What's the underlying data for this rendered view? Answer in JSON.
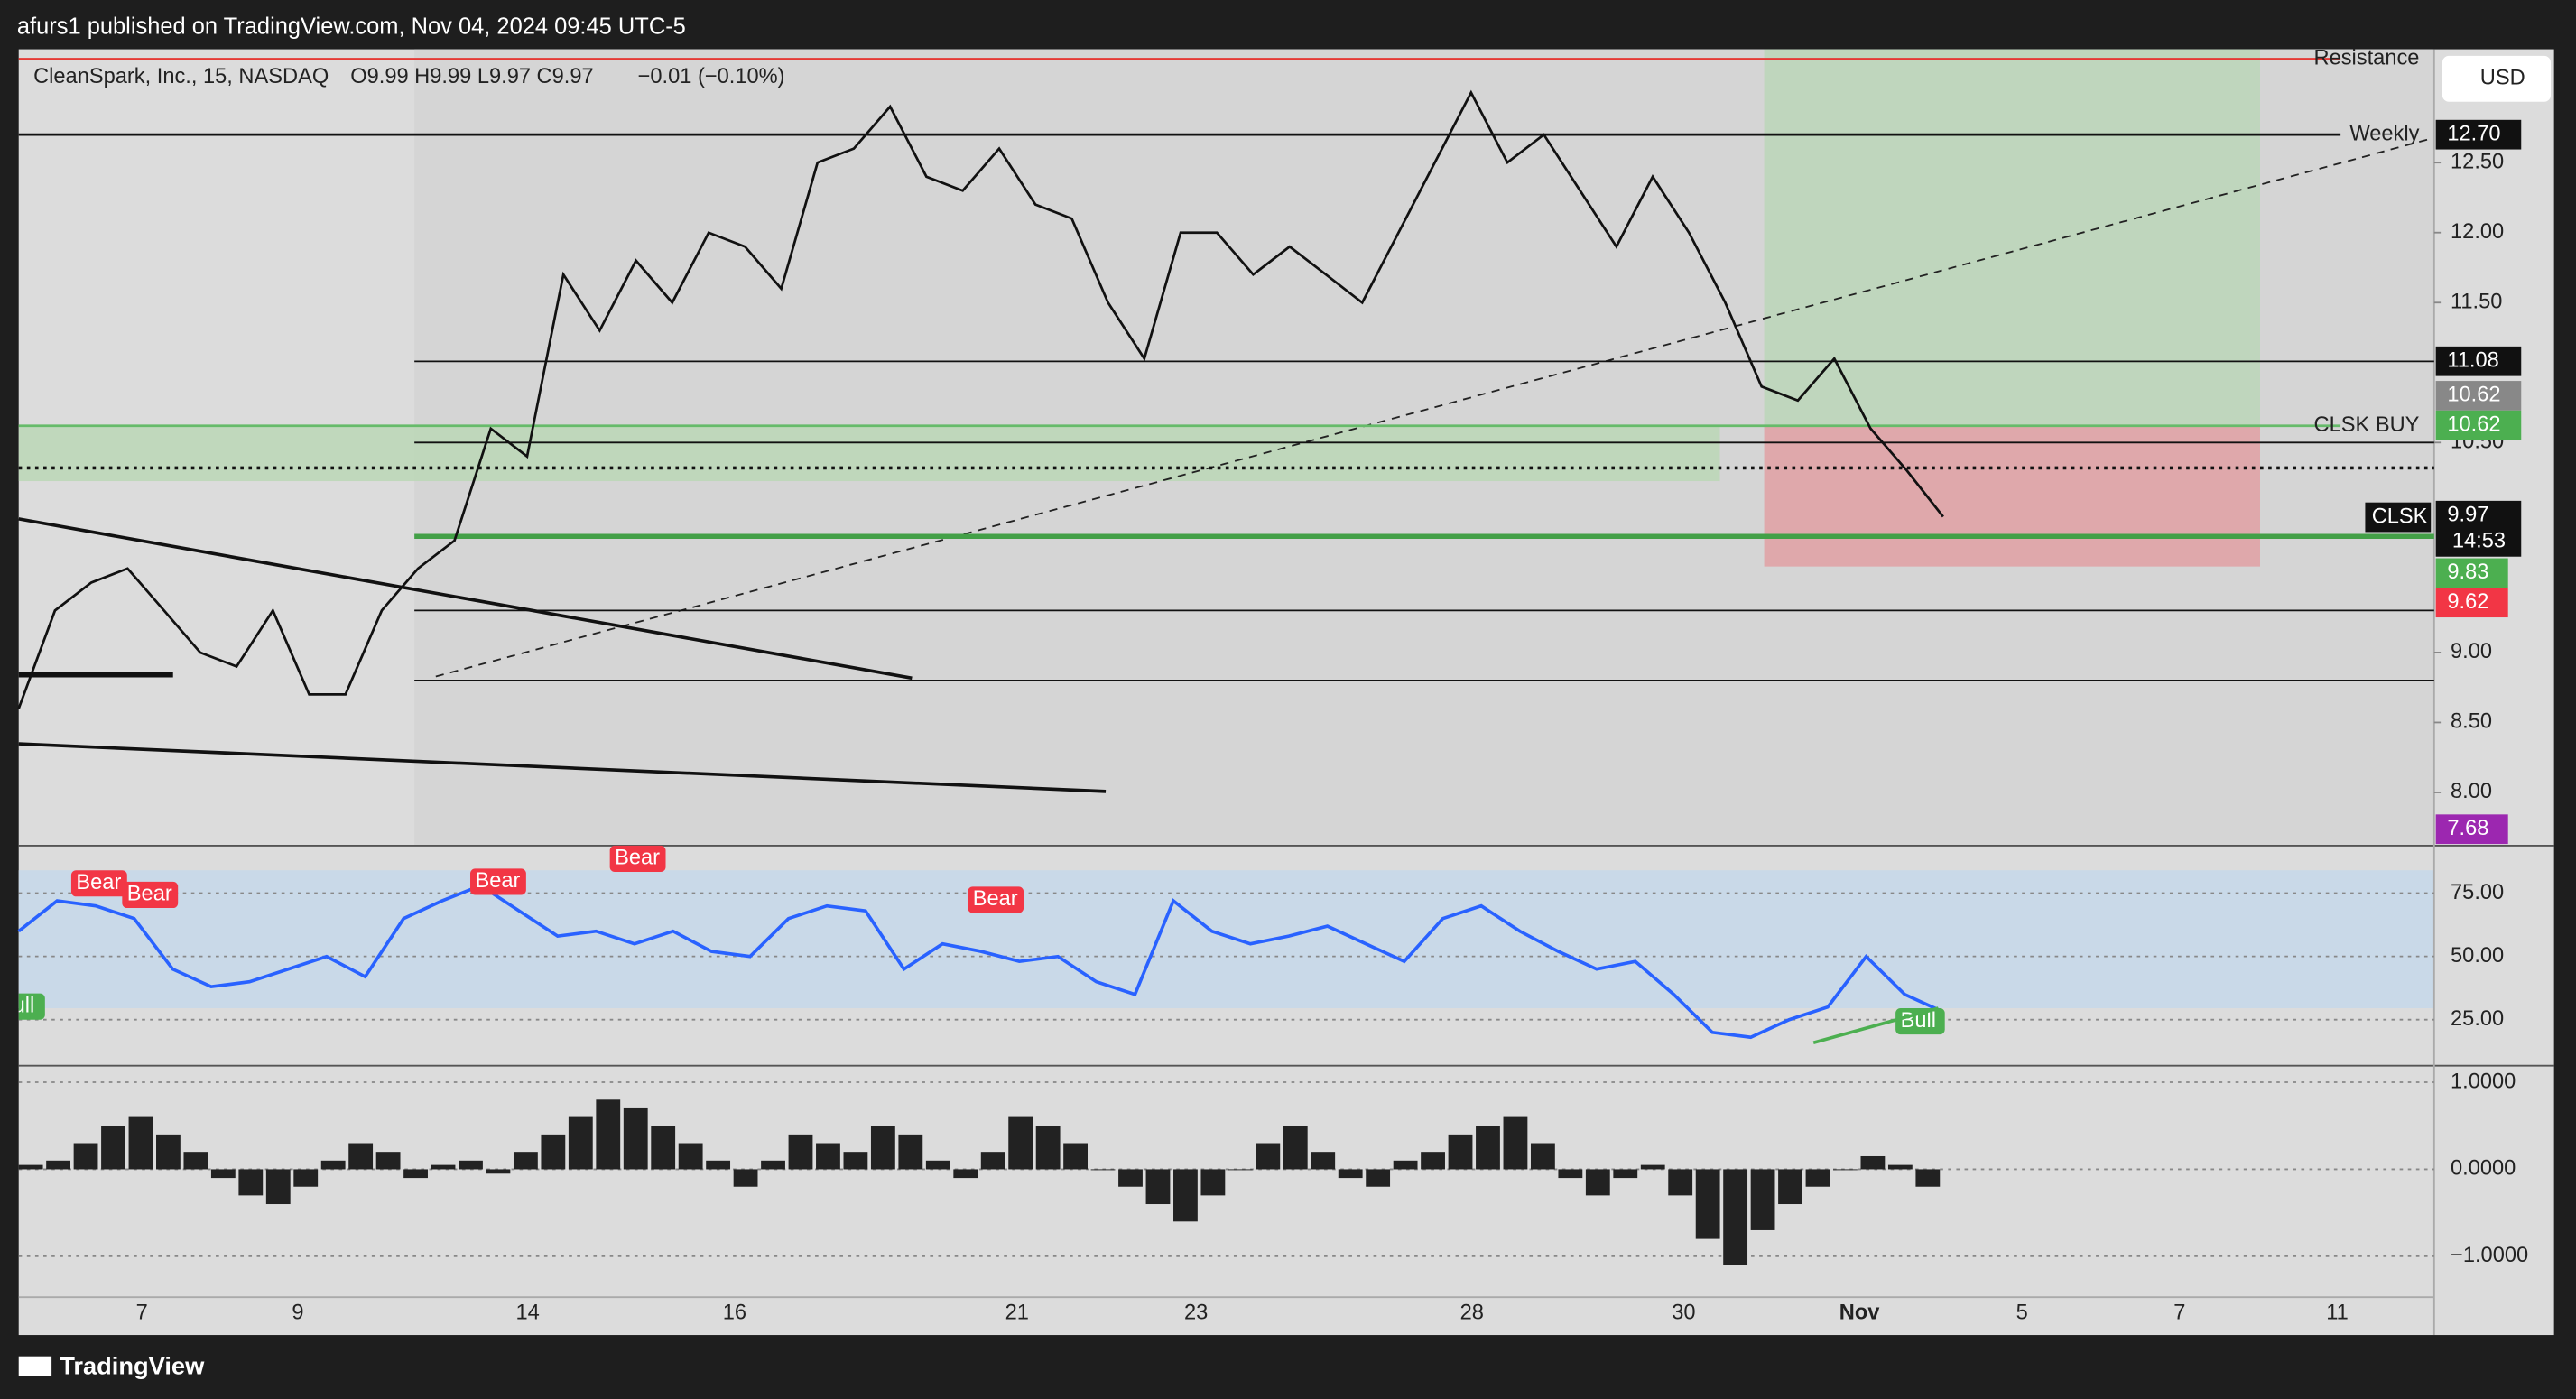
{
  "header": {
    "publisher": "afurs1 published on TradingView.com, Nov 04, 2024 09:45 UTC-5",
    "symbol": "CleanSpark, Inc., 15, NASDAQ",
    "ohlc": "O9.99  H9.99  L9.97  C9.97",
    "change": "−0.01 (−0.10%)",
    "currency": "USD"
  },
  "price_panel": {
    "ylim": [
      7.62,
      13.31
    ],
    "yticks": [
      {
        "value": 12.5,
        "label": "12.50"
      },
      {
        "value": 12,
        "label": "12.00"
      },
      {
        "value": 11.5,
        "label": "11.50"
      },
      {
        "value": 10.5,
        "label": "10.50"
      },
      {
        "value": 9,
        "label": "9.00"
      },
      {
        "value": 8.5,
        "label": "8.50"
      },
      {
        "value": 8,
        "label": "8.00"
      }
    ],
    "closes": [
      8.6,
      9.3,
      9.5,
      9.6,
      9.3,
      9.0,
      8.9,
      9.3,
      8.7,
      8.7,
      9.3,
      9.6,
      9.8,
      10.6,
      10.4,
      11.7,
      11.3,
      11.8,
      11.5,
      12.0,
      11.9,
      11.6,
      12.5,
      12.6,
      12.9,
      12.4,
      12.3,
      12.6,
      12.2,
      12.1,
      11.5,
      11.1,
      12.0,
      12.0,
      11.7,
      11.9,
      11.7,
      11.5,
      12.0,
      12.5,
      13.0,
      12.5,
      12.7,
      12.3,
      11.9,
      12.4,
      12.0,
      11.5,
      10.9,
      10.8,
      11.1,
      10.6,
      10.3,
      9.97
    ],
    "levels": [
      {
        "label": "Resistance",
        "value": 13.24,
        "color": "#e53935"
      },
      {
        "label": "Weekly",
        "value": 12.7,
        "color": "#111111"
      },
      {
        "label": "CLSK BUY",
        "value": 10.62,
        "color": "#66bb6a"
      }
    ],
    "lines": [
      {
        "value": 11.08,
        "color": "#111111"
      },
      {
        "value": 10.5,
        "color": "#111111"
      },
      {
        "value": 9.83,
        "color": "#43a047"
      },
      {
        "value": 9.3,
        "color": "#111111"
      },
      {
        "value": 8.8,
        "color": "#111111"
      }
    ],
    "tags": {
      "weekly": "12.70",
      "t1108": "11.08",
      "t1062a": "10.62",
      "t1062b": "10.62",
      "symbol": "CLSK",
      "last": "9.97",
      "countdown": "14:53",
      "t983": "9.83",
      "t962": "9.62",
      "t768": "7.68"
    }
  },
  "rsi_panel": {
    "ylim": [
      6.8,
      93.8
    ],
    "yticks": [
      {
        "value": 75,
        "label": "75.00"
      },
      {
        "value": 50,
        "label": "50.00"
      },
      {
        "value": 25,
        "label": "25.00"
      }
    ],
    "values": [
      60,
      72,
      70,
      65,
      45,
      38,
      40,
      45,
      50,
      42,
      65,
      72,
      78,
      68,
      58,
      60,
      55,
      60,
      52,
      50,
      65,
      70,
      68,
      45,
      55,
      52,
      48,
      50,
      40,
      35,
      72,
      60,
      55,
      58,
      62,
      55,
      48,
      65,
      70,
      60,
      52,
      45,
      48,
      35,
      20,
      18,
      25,
      30,
      50,
      35,
      28
    ],
    "signals": [
      "Bear",
      "Bear",
      "Bear",
      "Bear",
      "Bear",
      "Bull",
      "Bull"
    ]
  },
  "macd_panel": {
    "ylim": [
      -1.47,
      1.19
    ],
    "yticks": [
      {
        "value": 1,
        "label": "1.0000"
      },
      {
        "value": 0,
        "label": "0.0000"
      },
      {
        "value": -1,
        "label": "−1.0000"
      }
    ],
    "values": [
      0.05,
      0.1,
      0.3,
      0.5,
      0.6,
      0.4,
      0.2,
      -0.1,
      -0.3,
      -0.4,
      -0.2,
      0.1,
      0.3,
      0.2,
      -0.1,
      0.05,
      0.1,
      -0.05,
      0.2,
      0.4,
      0.6,
      0.8,
      0.7,
      0.5,
      0.3,
      0.1,
      -0.2,
      0.1,
      0.4,
      0.3,
      0.2,
      0.5,
      0.4,
      0.1,
      -0.1,
      0.2,
      0.6,
      0.5,
      0.3,
      0.0,
      -0.2,
      -0.4,
      -0.6,
      -0.3,
      0.0,
      0.3,
      0.5,
      0.2,
      -0.1,
      -0.2,
      0.1,
      0.2,
      0.4,
      0.5,
      0.6,
      0.3,
      -0.1,
      -0.3,
      -0.1,
      0.05,
      -0.3,
      -0.8,
      -1.1,
      -0.7,
      -0.4,
      -0.2,
      0.0,
      0.15,
      0.05,
      -0.2
    ]
  },
  "time_axis": {
    "labels": [
      "7",
      "9",
      "14",
      "16",
      "21",
      "23",
      "28",
      "30",
      "Nov",
      "5",
      "7",
      "11"
    ]
  },
  "footer": {
    "brand": "TradingView"
  }
}
